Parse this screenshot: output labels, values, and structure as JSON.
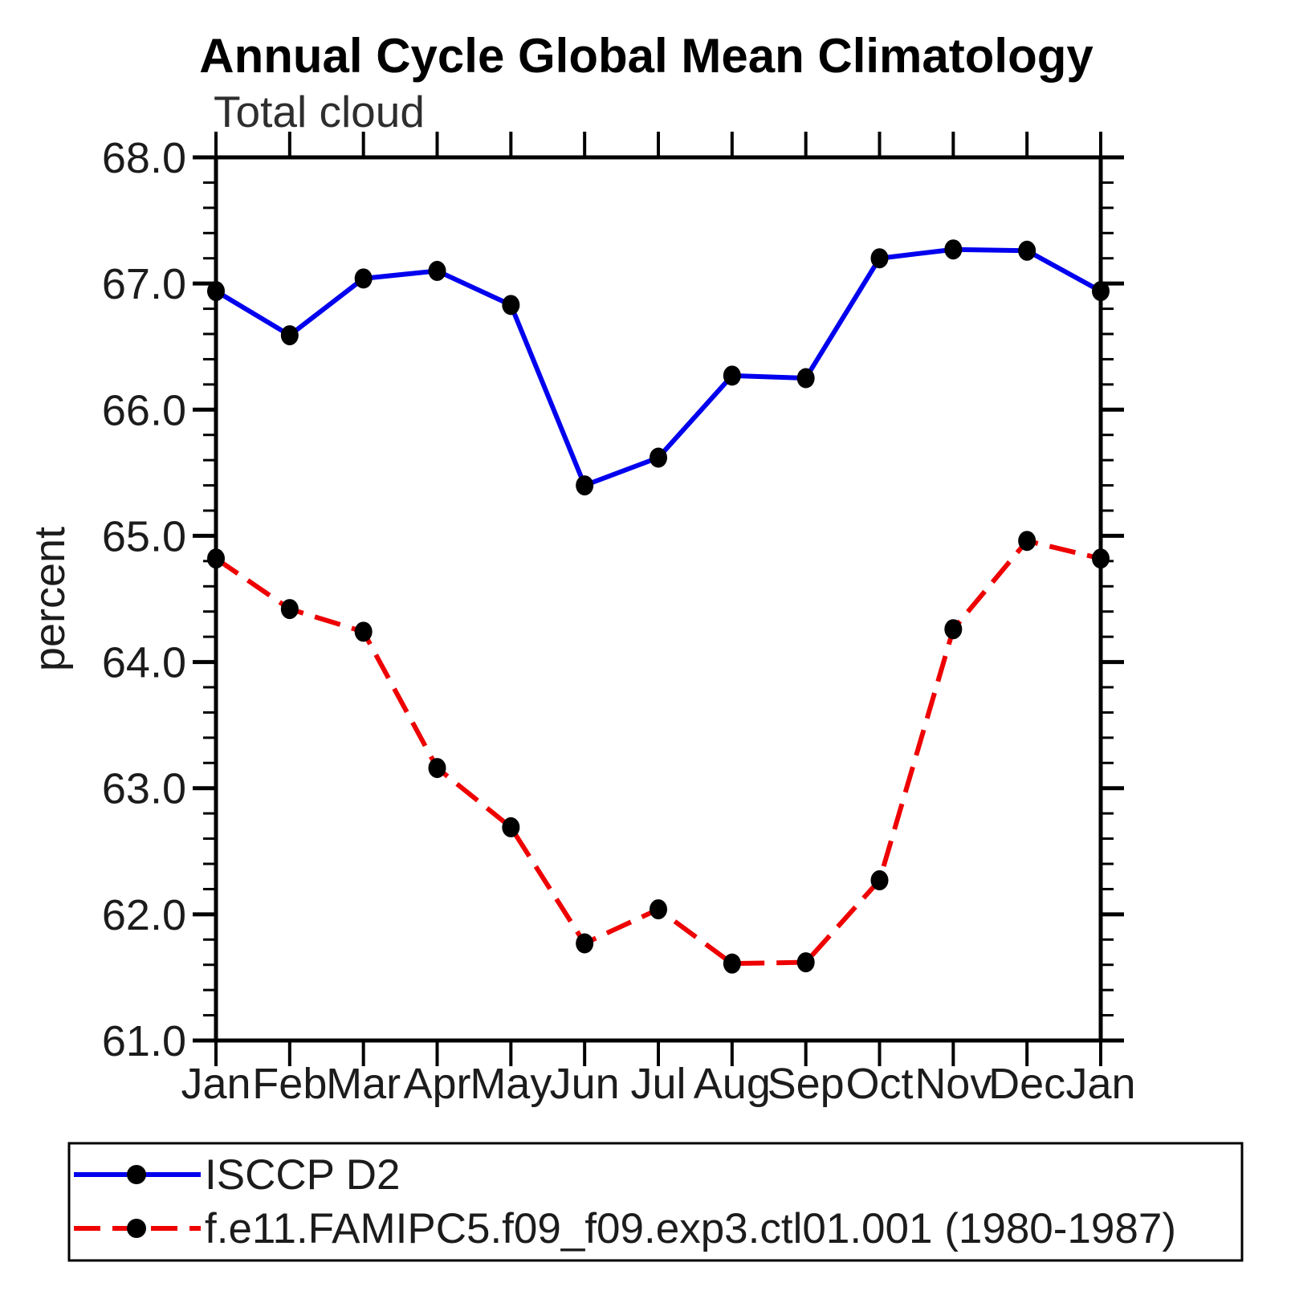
{
  "title": "Annual Cycle Global Mean Climatology",
  "subtitle": "Total cloud",
  "ylabel": "percent",
  "chart_data": {
    "type": "line",
    "categories": [
      "Jan",
      "Feb",
      "Mar",
      "Apr",
      "May",
      "Jun",
      "Jul",
      "Aug",
      "Sep",
      "Oct",
      "Nov",
      "Dec",
      "Jan"
    ],
    "series": [
      {
        "name": "ISCCP D2",
        "color": "#0000ee",
        "line_style": "solid",
        "marker": "black-filled-circle",
        "values": [
          66.94,
          66.59,
          67.04,
          67.1,
          66.83,
          65.4,
          65.62,
          66.27,
          66.25,
          67.2,
          67.27,
          67.26,
          66.94
        ]
      },
      {
        "name": "f.e11.FAMIPC5.f09_f09.exp3.ctl01.001 (1980-1987)",
        "color": "#ee0000",
        "line_style": "dashed",
        "marker": "black-filled-circle",
        "values": [
          64.82,
          64.42,
          64.24,
          63.16,
          62.69,
          61.77,
          62.04,
          61.61,
          61.62,
          62.27,
          64.26,
          64.96,
          64.82
        ]
      }
    ],
    "ylim": [
      61.0,
      68.0
    ],
    "ytick_major": 1.0,
    "ytick_minor": 0.2,
    "ytick_labels": [
      "68.0",
      "67.0",
      "66.0",
      "65.0",
      "64.0",
      "63.0",
      "62.0",
      "61.0"
    ],
    "grid": "off",
    "frame": "box with outward ticks on all four sides",
    "legend_position": "bottom-left box",
    "marker_color": "#000000"
  },
  "legend": {
    "entries": [
      {
        "label": "ISCCP D2"
      },
      {
        "label": "f.e11.FAMIPC5.f09_f09.exp3.ctl01.001 (1980-1987)"
      }
    ]
  }
}
